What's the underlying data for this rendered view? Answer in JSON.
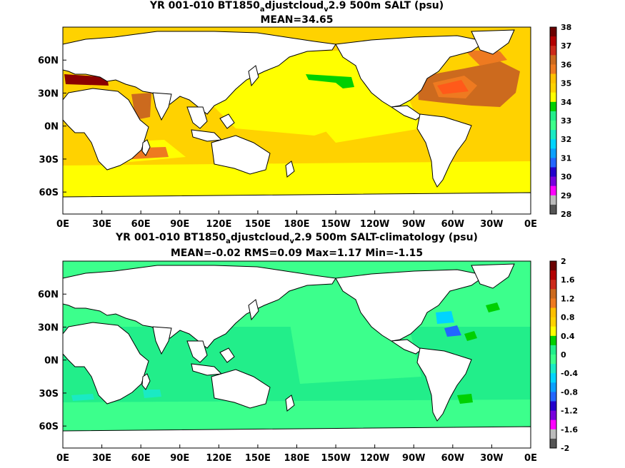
{
  "panels": [
    {
      "title_parts": [
        "YR 001-010 BT1850",
        "a",
        "djustcloud",
        "v",
        "2.9 500m SALT (psu)"
      ],
      "subtitle": "MEAN=34.65",
      "colorbar": {
        "labels": [
          "38",
          "37",
          "36",
          "35",
          "34",
          "33",
          "32",
          "31",
          "30",
          "29",
          "28"
        ],
        "colors": [
          "#6b0000",
          "#b30000",
          "#cc2a1a",
          "#cc6a1e",
          "#ee7a20",
          "#ffc000",
          "#ffd200",
          "#ffff00",
          "#00d000",
          "#22ee8a",
          "#3cff8c",
          "#1aeac4",
          "#00d4ff",
          "#0aa0ff",
          "#2266ff",
          "#2200cc",
          "#7700dd",
          "#ff00ff",
          "#bbbbbb",
          "#555555"
        ]
      },
      "x_ticks": [
        "0E",
        "30E",
        "60E",
        "90E",
        "120E",
        "150E",
        "180E",
        "150W",
        "120W",
        "90W",
        "60W",
        "30W",
        "0E"
      ],
      "y_ticks": [
        "60N",
        "30N",
        "0N",
        "30S",
        "60S"
      ]
    },
    {
      "title_parts": [
        "YR 001-010 BT1850",
        "a",
        "djustcloud",
        "v",
        "2.9 500m SALT-climatology (psu)"
      ],
      "subtitle": "MEAN=-0.02   RMS=0.09   Max=1.17   Min=-1.15",
      "colorbar": {
        "labels": [
          "2",
          "1.6",
          "1.2",
          "0.8",
          "0.4",
          "0",
          "-0.4",
          "-0.8",
          "-1.2",
          "-1.6",
          "-2"
        ],
        "colors": [
          "#6b0000",
          "#b30000",
          "#cc2a1a",
          "#cc6a1e",
          "#ee7a20",
          "#ffc000",
          "#ffd200",
          "#ffff00",
          "#00d000",
          "#22ee8a",
          "#3cff8c",
          "#1aeac4",
          "#00d4ff",
          "#0aa0ff",
          "#2266ff",
          "#2200cc",
          "#7700dd",
          "#ff00ff",
          "#bbbbbb",
          "#555555"
        ]
      },
      "x_ticks": [
        "0E",
        "30E",
        "60E",
        "90E",
        "120E",
        "150E",
        "180E",
        "150W",
        "120W",
        "90W",
        "60W",
        "30W",
        "0E"
      ],
      "y_ticks": [
        "60N",
        "30N",
        "0N",
        "30S",
        "60S"
      ]
    }
  ]
}
